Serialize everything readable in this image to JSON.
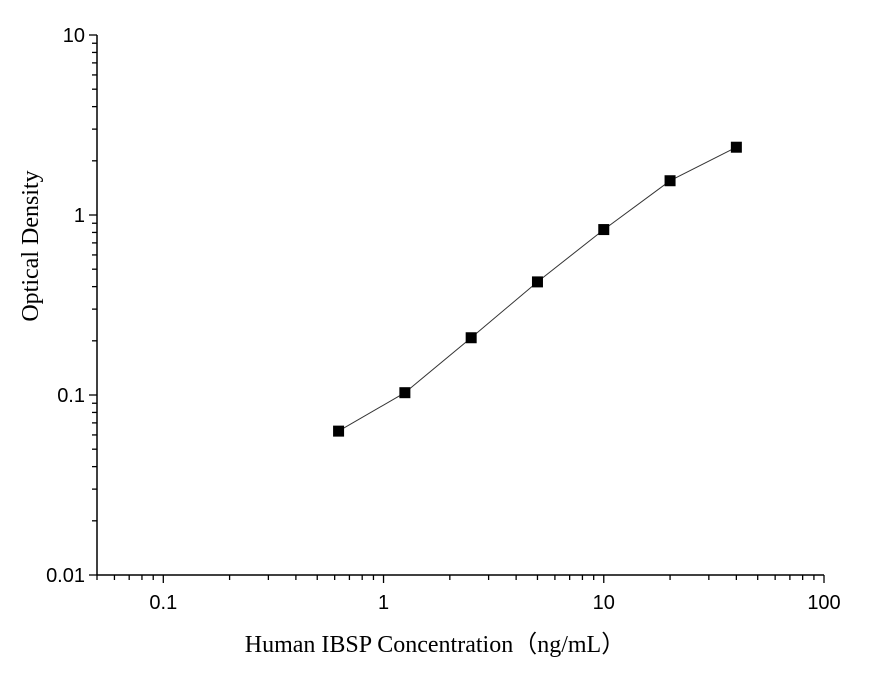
{
  "chart_data": {
    "type": "scatter",
    "x_scale": "log",
    "y_scale": "log",
    "xlabel": "Human IBSP Concentration（ng/mL）",
    "ylabel": "Optical  Density",
    "xlim": [
      0.05,
      100
    ],
    "ylim": [
      0.01,
      10
    ],
    "x_ticks": [
      {
        "value": 0.1,
        "label": "0.1"
      },
      {
        "value": 1,
        "label": "1"
      },
      {
        "value": 10,
        "label": "10"
      },
      {
        "value": 100,
        "label": "100"
      }
    ],
    "y_ticks": [
      {
        "value": 0.01,
        "label": "0.01"
      },
      {
        "value": 0.1,
        "label": "0.1"
      },
      {
        "value": 1,
        "label": "1"
      },
      {
        "value": 10,
        "label": "10"
      }
    ],
    "grid": false,
    "connect_points": true,
    "marker": "square",
    "colors": {
      "series": "#000000",
      "axes": "#000000",
      "line": "#333333"
    },
    "series": [
      {
        "x": [
          0.625,
          1.25,
          2.5,
          5,
          10,
          20,
          40
        ],
        "y": [
          0.063,
          0.103,
          0.208,
          0.425,
          0.83,
          1.55,
          2.38
        ]
      }
    ]
  }
}
